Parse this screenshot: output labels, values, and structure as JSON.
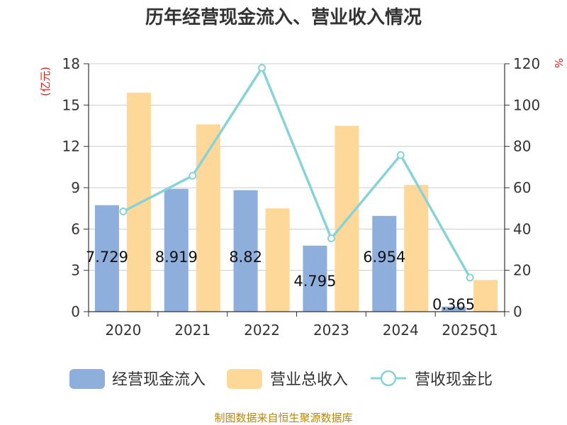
{
  "chart_data": {
    "type": "bar",
    "title": "历年经营现金流入、营业收入情况",
    "categories": [
      "2020",
      "2021",
      "2022",
      "2023",
      "2024",
      "2025Q1"
    ],
    "series": [
      {
        "name": "经营现金流入",
        "kind": "bar",
        "axis": "left",
        "color": "#8eaedb",
        "values": [
          7.729,
          8.919,
          8.82,
          4.795,
          6.954,
          0.365
        ]
      },
      {
        "name": "营业总收入",
        "kind": "bar",
        "axis": "left",
        "color": "#fed899",
        "values": [
          15.9,
          13.6,
          7.5,
          13.5,
          9.2,
          2.3
        ]
      },
      {
        "name": "营收现金比",
        "kind": "line",
        "axis": "right",
        "color": "#88d3d7",
        "values": [
          48.5,
          65.8,
          118,
          35.5,
          75.8,
          16.5
        ]
      }
    ],
    "data_labels": [
      "7.729",
      "8.919",
      "8.82",
      "4.795",
      "6.954",
      "0.365"
    ],
    "y_left": {
      "label": "(亿元)",
      "ylim": [
        0,
        18
      ],
      "ticks": [
        0,
        3,
        6,
        9,
        12,
        15,
        18
      ]
    },
    "y_right": {
      "label": "%",
      "ylim": [
        0,
        120
      ],
      "ticks": [
        0,
        20,
        40,
        60,
        80,
        100,
        120
      ]
    },
    "grid": true,
    "legend": "bottom"
  },
  "source": "制图数据来自恒生聚源数据库"
}
